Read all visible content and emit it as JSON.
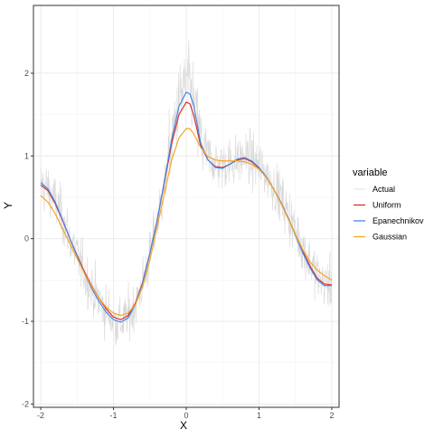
{
  "chart_data": {
    "type": "line",
    "xlabel": "X",
    "ylabel": "Y",
    "xlim": [
      -2.1,
      2.1
    ],
    "ylim": [
      -2.04,
      2.82
    ],
    "x_ticks": [
      -2,
      -1,
      0,
      1,
      2
    ],
    "y_ticks": [
      -2,
      -1,
      0,
      1,
      2
    ],
    "grid": true,
    "legend": {
      "title": "variable",
      "placement": "right"
    },
    "x": [
      -2.0,
      -1.9,
      -1.8,
      -1.7,
      -1.6,
      -1.5,
      -1.4,
      -1.3,
      -1.2,
      -1.1,
      -1.0,
      -0.9,
      -0.8,
      -0.7,
      -0.6,
      -0.5,
      -0.4,
      -0.3,
      -0.2,
      -0.1,
      0.0,
      0.05,
      0.1,
      0.2,
      0.3,
      0.4,
      0.5,
      0.6,
      0.7,
      0.8,
      0.9,
      1.0,
      1.1,
      1.2,
      1.3,
      1.4,
      1.5,
      1.6,
      1.7,
      1.8,
      1.9,
      2.0
    ],
    "series": [
      {
        "name": "Actual",
        "color": "#d9d9d9",
        "noisy": true,
        "values": [
          0.65,
          0.6,
          0.45,
          0.25,
          0.0,
          -0.2,
          -0.42,
          -0.6,
          -0.75,
          -0.88,
          -0.98,
          -1.02,
          -0.95,
          -0.8,
          -0.55,
          -0.2,
          0.2,
          0.6,
          1.2,
          1.65,
          1.9,
          1.85,
          1.65,
          1.2,
          1.0,
          0.92,
          0.9,
          0.92,
          0.95,
          0.98,
          0.95,
          0.88,
          0.78,
          0.65,
          0.5,
          0.3,
          0.1,
          -0.1,
          -0.28,
          -0.45,
          -0.55,
          -0.55
        ]
      },
      {
        "name": "Uniform",
        "color": "#d73027",
        "values": [
          0.65,
          0.58,
          0.42,
          0.22,
          0.0,
          -0.2,
          -0.4,
          -0.57,
          -0.72,
          -0.85,
          -0.95,
          -0.98,
          -0.93,
          -0.78,
          -0.53,
          -0.18,
          0.22,
          0.68,
          1.15,
          1.5,
          1.65,
          1.63,
          1.5,
          1.12,
          0.95,
          0.87,
          0.86,
          0.9,
          0.95,
          0.97,
          0.93,
          0.85,
          0.74,
          0.6,
          0.44,
          0.25,
          0.05,
          -0.15,
          -0.33,
          -0.48,
          -0.55,
          -0.56
        ]
      },
      {
        "name": "Epanechnikov",
        "color": "#4a86e8",
        "values": [
          0.68,
          0.6,
          0.44,
          0.23,
          0.0,
          -0.21,
          -0.42,
          -0.6,
          -0.76,
          -0.89,
          -0.98,
          -1.01,
          -0.96,
          -0.8,
          -0.54,
          -0.18,
          0.22,
          0.7,
          1.2,
          1.6,
          1.77,
          1.75,
          1.62,
          1.15,
          0.95,
          0.86,
          0.85,
          0.9,
          0.96,
          0.98,
          0.94,
          0.86,
          0.75,
          0.6,
          0.44,
          0.25,
          0.04,
          -0.17,
          -0.35,
          -0.5,
          -0.57,
          -0.57
        ]
      },
      {
        "name": "Gaussian",
        "color": "#f5a623",
        "values": [
          0.52,
          0.44,
          0.3,
          0.12,
          -0.06,
          -0.24,
          -0.42,
          -0.58,
          -0.72,
          -0.83,
          -0.9,
          -0.93,
          -0.9,
          -0.8,
          -0.58,
          -0.26,
          0.14,
          0.55,
          0.95,
          1.22,
          1.33,
          1.33,
          1.27,
          1.1,
          0.99,
          0.95,
          0.94,
          0.94,
          0.94,
          0.93,
          0.9,
          0.84,
          0.74,
          0.6,
          0.43,
          0.24,
          0.05,
          -0.13,
          -0.28,
          -0.38,
          -0.45,
          -0.5
        ]
      }
    ]
  }
}
